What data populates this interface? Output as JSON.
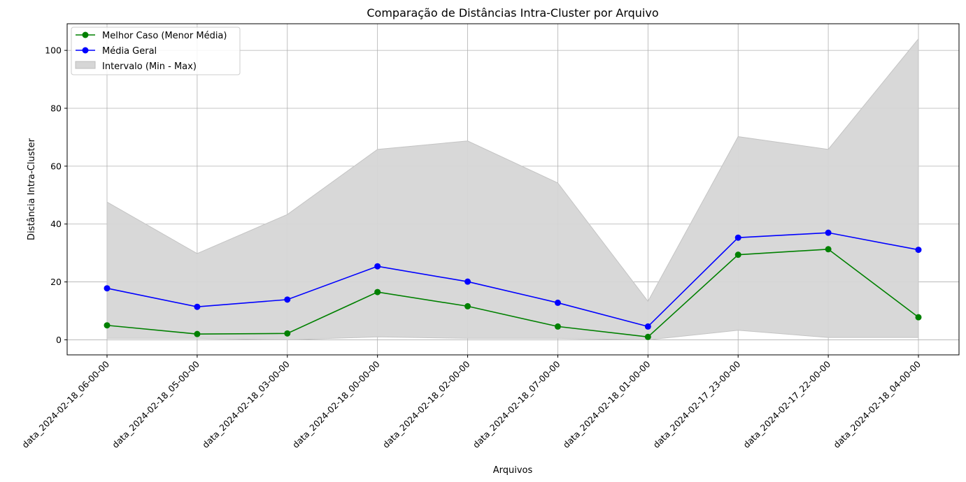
{
  "chart_data": {
    "type": "line",
    "title": "Comparação de Distâncias Intra-Cluster por Arquivo",
    "xlabel": "Arquivos",
    "ylabel": "Distância Intra-Cluster",
    "categories": [
      "data_2024-02-18_06-00-00",
      "data_2024-02-18_05-00-00",
      "data_2024-02-18_03-00-00",
      "data_2024-02-18_00-00-00",
      "data_2024-02-18_02-00-00",
      "data_2024-02-18_07-00-00",
      "data_2024-02-18_01-00-00",
      "data_2024-02-17_23-00-00",
      "data_2024-02-17_22-00-00",
      "data_2024-02-18_04-00-00"
    ],
    "series": [
      {
        "name": "Melhor Caso (Menor Média)",
        "color": "#008000",
        "values": [
          5.0,
          2.0,
          2.2,
          16.5,
          11.6,
          4.6,
          1.0,
          29.4,
          31.3,
          7.8
        ]
      },
      {
        "name": "Média Geral",
        "color": "#0000ff",
        "values": [
          17.8,
          11.4,
          13.9,
          25.4,
          20.1,
          12.8,
          4.6,
          35.3,
          37.0,
          31.1
        ]
      }
    ],
    "band": {
      "name": "Intervalo (Min - Max)",
      "color": "#d6d6d6",
      "min": [
        0.5,
        0.5,
        0.0,
        1.0,
        0.5,
        0.5,
        0.0,
        3.3,
        0.8,
        0.8
      ],
      "max": [
        47.6,
        29.8,
        43.3,
        65.8,
        68.7,
        54.2,
        13.3,
        70.2,
        65.8,
        104.0
      ]
    },
    "yticks": [
      0,
      20,
      40,
      60,
      80,
      100
    ],
    "ylim": [
      -5.2,
      109.2
    ],
    "grid": true,
    "legend_position": "top-left"
  }
}
